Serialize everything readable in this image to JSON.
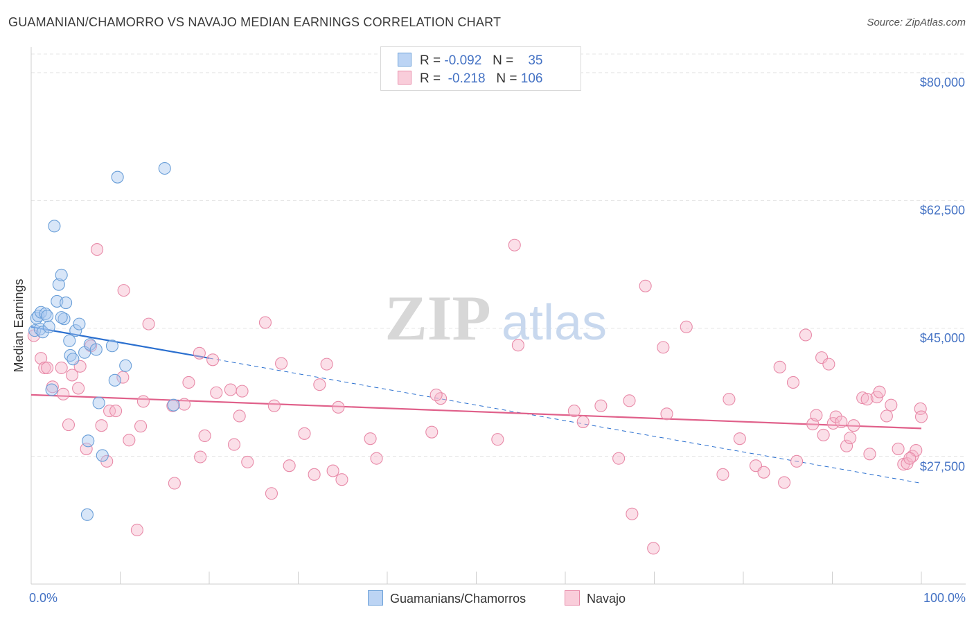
{
  "title": "GUAMANIAN/CHAMORRO VS NAVAJO MEDIAN EARNINGS CORRELATION CHART",
  "source": "Source: ZipAtlas.com",
  "watermark": {
    "zip": "ZIP",
    "atlas": "atlas"
  },
  "colors": {
    "blue_fill": "#a9c8f0",
    "blue_stroke": "#6a9fd8",
    "blue_line": "#2a6fcf",
    "pink_fill": "#f7b8cb",
    "pink_stroke": "#e88aa8",
    "pink_line": "#e0608a",
    "axis_text": "#4472c4",
    "grid": "#e4e4e4"
  },
  "legend": {
    "rows": [
      {
        "r_label": "R =",
        "r_value": "-0.092",
        "n_label": "N =",
        "n_value": "35"
      },
      {
        "r_label": "R =",
        "r_value": "-0.218",
        "n_label": "N =",
        "n_value": "106"
      }
    ]
  },
  "bottom_legend": [
    "Guamanians/Chamorros",
    "Navajo"
  ],
  "chart_data": {
    "type": "scatter",
    "xlabel": "",
    "ylabel": "Median Earnings",
    "xlim": [
      0,
      100
    ],
    "ylim": [
      10000,
      83500
    ],
    "x_tick_labels": {
      "min": "0.0%",
      "max": "100.0%"
    },
    "y_ticks": [
      {
        "value": 80000,
        "label": "$80,000"
      },
      {
        "value": 62500,
        "label": "$62,500"
      },
      {
        "value": 45000,
        "label": "$45,000"
      },
      {
        "value": 27500,
        "label": "$27,500"
      }
    ],
    "series": [
      {
        "name": "Guamanians/Chamorros",
        "color": "blue",
        "trend": {
          "x0": 0,
          "y0": 45200,
          "x1": 100,
          "y1": 23800,
          "solid_until": 20
        },
        "points": [
          [
            0.4,
            44700
          ],
          [
            0.6,
            46400
          ],
          [
            0.8,
            46700
          ],
          [
            1.0,
            44900
          ],
          [
            1.1,
            47200
          ],
          [
            1.3,
            44500
          ],
          [
            1.6,
            47000
          ],
          [
            1.8,
            46700
          ],
          [
            2.0,
            45200
          ],
          [
            2.3,
            36600
          ],
          [
            2.9,
            48700
          ],
          [
            3.1,
            51000
          ],
          [
            3.4,
            52300
          ],
          [
            3.7,
            46300
          ],
          [
            3.9,
            48500
          ],
          [
            4.3,
            43300
          ],
          [
            4.4,
            41300
          ],
          [
            4.7,
            40800
          ],
          [
            5.0,
            44700
          ],
          [
            5.4,
            45600
          ],
          [
            6.0,
            41700
          ],
          [
            6.4,
            29600
          ],
          [
            6.6,
            42800
          ],
          [
            7.3,
            42100
          ],
          [
            7.6,
            34800
          ],
          [
            8.0,
            27600
          ],
          [
            9.1,
            42600
          ],
          [
            9.4,
            37900
          ],
          [
            9.7,
            65700
          ],
          [
            10.6,
            39900
          ],
          [
            15.0,
            66900
          ],
          [
            16.0,
            34500
          ],
          [
            2.6,
            59000
          ],
          [
            6.3,
            19500
          ],
          [
            3.4,
            46500
          ]
        ]
      },
      {
        "name": "Navajo",
        "color": "pink",
        "trend": {
          "x0": 0,
          "y0": 35900,
          "x1": 100,
          "y1": 31300
        },
        "points": [
          [
            0.3,
            44000
          ],
          [
            1.1,
            40900
          ],
          [
            1.5,
            39600
          ],
          [
            1.8,
            39600
          ],
          [
            2.4,
            37000
          ],
          [
            3.4,
            39600
          ],
          [
            3.6,
            36000
          ],
          [
            4.2,
            31800
          ],
          [
            4.6,
            38600
          ],
          [
            5.3,
            36800
          ],
          [
            5.5,
            39800
          ],
          [
            6.2,
            28500
          ],
          [
            6.7,
            42600
          ],
          [
            7.4,
            55800
          ],
          [
            7.9,
            31700
          ],
          [
            8.5,
            26800
          ],
          [
            8.8,
            33700
          ],
          [
            9.5,
            33700
          ],
          [
            10.3,
            38300
          ],
          [
            10.4,
            50200
          ],
          [
            11.0,
            29700
          ],
          [
            11.9,
            17400
          ],
          [
            12.3,
            31600
          ],
          [
            12.6,
            35000
          ],
          [
            13.2,
            45600
          ],
          [
            15.9,
            34400
          ],
          [
            16.1,
            23800
          ],
          [
            17.2,
            34600
          ],
          [
            17.7,
            37600
          ],
          [
            18.9,
            41600
          ],
          [
            19.0,
            27400
          ],
          [
            19.5,
            30300
          ],
          [
            20.4,
            40700
          ],
          [
            20.8,
            36200
          ],
          [
            22.4,
            36600
          ],
          [
            22.8,
            29100
          ],
          [
            23.4,
            33000
          ],
          [
            23.7,
            36400
          ],
          [
            24.3,
            26700
          ],
          [
            26.3,
            45800
          ],
          [
            27.0,
            22400
          ],
          [
            27.3,
            34400
          ],
          [
            28.1,
            40200
          ],
          [
            29.0,
            26200
          ],
          [
            30.7,
            30600
          ],
          [
            31.8,
            25000
          ],
          [
            32.4,
            37300
          ],
          [
            33.2,
            40100
          ],
          [
            33.9,
            25500
          ],
          [
            34.5,
            34200
          ],
          [
            34.9,
            24300
          ],
          [
            38.1,
            29900
          ],
          [
            38.8,
            27200
          ],
          [
            46.0,
            35400
          ],
          [
            45.5,
            35900
          ],
          [
            45.0,
            30800
          ],
          [
            52.4,
            29800
          ],
          [
            54.3,
            56400
          ],
          [
            54.7,
            42700
          ],
          [
            61.0,
            33700
          ],
          [
            62.0,
            32200
          ],
          [
            64.0,
            34400
          ],
          [
            66.0,
            27200
          ],
          [
            67.2,
            35100
          ],
          [
            67.5,
            19600
          ],
          [
            69.0,
            50800
          ],
          [
            69.9,
            14900
          ],
          [
            71.0,
            42400
          ],
          [
            71.4,
            33300
          ],
          [
            73.6,
            45200
          ],
          [
            77.7,
            25000
          ],
          [
            78.4,
            35300
          ],
          [
            79.6,
            29900
          ],
          [
            81.4,
            26200
          ],
          [
            82.3,
            25300
          ],
          [
            84.1,
            39700
          ],
          [
            84.6,
            23900
          ],
          [
            85.6,
            37600
          ],
          [
            86.0,
            26800
          ],
          [
            87.0,
            44100
          ],
          [
            87.8,
            31900
          ],
          [
            88.2,
            33100
          ],
          [
            88.8,
            41000
          ],
          [
            89.0,
            30400
          ],
          [
            89.6,
            40100
          ],
          [
            90.1,
            32000
          ],
          [
            90.4,
            32900
          ],
          [
            91.0,
            32200
          ],
          [
            91.6,
            28900
          ],
          [
            92.0,
            30000
          ],
          [
            92.4,
            31700
          ],
          [
            93.4,
            35500
          ],
          [
            93.9,
            35300
          ],
          [
            94.2,
            27800
          ],
          [
            95.0,
            35600
          ],
          [
            95.3,
            36300
          ],
          [
            96.1,
            33000
          ],
          [
            96.6,
            34500
          ],
          [
            97.4,
            28500
          ],
          [
            98.0,
            26400
          ],
          [
            98.4,
            26500
          ],
          [
            99.0,
            27500
          ],
          [
            99.4,
            28300
          ],
          [
            99.9,
            34000
          ],
          [
            100.0,
            32900
          ],
          [
            98.7,
            27200
          ]
        ]
      }
    ]
  }
}
